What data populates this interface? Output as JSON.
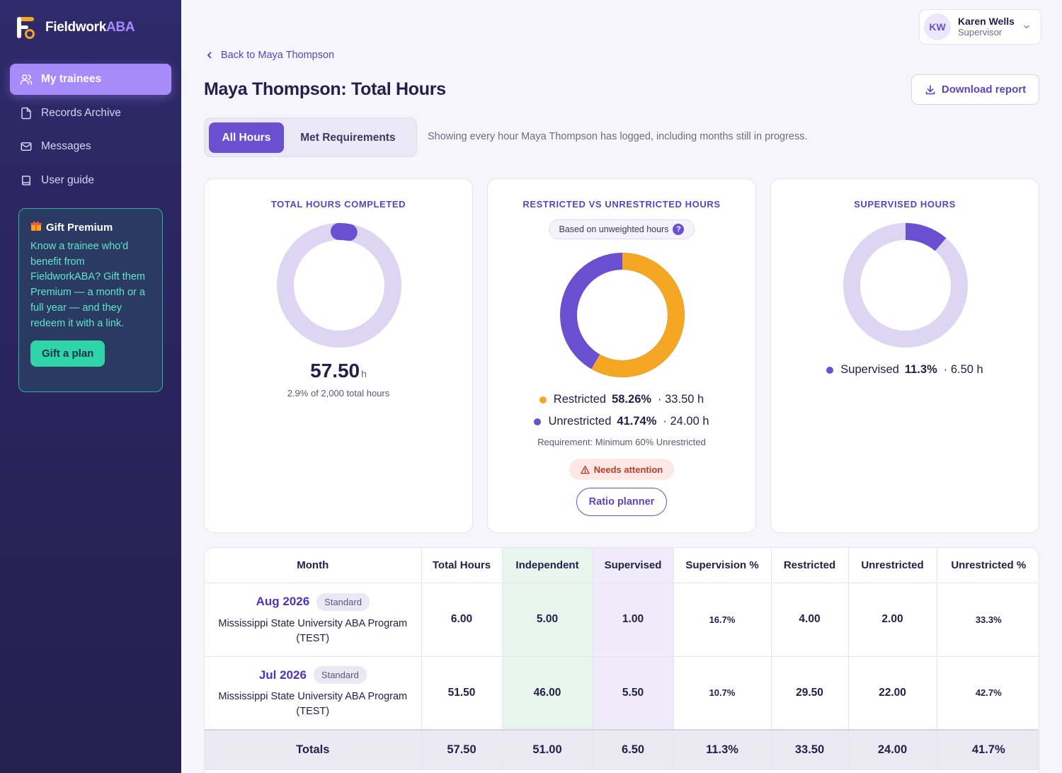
{
  "app": {
    "logo_main": "Fieldwork",
    "logo_accent": "ABA"
  },
  "sidebar": {
    "items": [
      {
        "label": "My trainees",
        "icon": "users-icon",
        "active": true
      },
      {
        "label": "Records Archive",
        "icon": "file-icon",
        "active": false
      },
      {
        "label": "Messages",
        "icon": "mail-icon",
        "active": false
      },
      {
        "label": "User guide",
        "icon": "book-icon",
        "active": false
      }
    ],
    "gift": {
      "title": "Gift Premium",
      "body": "Know a trainee who'd benefit from FieldworkABA? Gift them Premium — a month or a full year — and they redeem it with a link.",
      "button": "Gift a plan"
    }
  },
  "user": {
    "initials": "KW",
    "name": "Karen Wells",
    "role": "Supervisor"
  },
  "header": {
    "back_label": "Back to Maya Thompson",
    "title": "Maya Thompson: Total Hours",
    "download_label": "Download report"
  },
  "tabs": {
    "all": "All Hours",
    "met": "Met Requirements",
    "note": "Showing every hour Maya Thompson has logged, including months still in progress."
  },
  "cards": {
    "total": {
      "title": "TOTAL HOURS COMPLETED",
      "value": "57.50",
      "unit": "h",
      "sub": "2.9% of 2,000 total hours",
      "fraction": 0.029
    },
    "restricted": {
      "title": "RESTRICTED VS UNRESTRICTED HOURS",
      "pill": "Based on unweighted hours",
      "pill_icon": "?",
      "restricted_label": "Restricted",
      "restricted_pct": "58.26%",
      "restricted_hours": "· 33.50 h",
      "restricted_fraction": 0.5826,
      "unrestricted_label": "Unrestricted",
      "unrestricted_pct": "41.74%",
      "unrestricted_hours": "· 24.00 h",
      "requirement": "Requirement: Minimum 60% Unrestricted",
      "attention": "Needs attention",
      "ratio_button": "Ratio planner"
    },
    "supervised": {
      "title": "SUPERVISED HOURS",
      "label": "Supervised",
      "pct": "11.3%",
      "hours": "· 6.50 h",
      "fraction": 0.113
    }
  },
  "colors": {
    "accent": "#6a4fd0",
    "track": "#ddd6f3",
    "restricted": "#f5a623",
    "unrestricted": "#6a4fd0"
  },
  "table": {
    "headers": [
      "Month",
      "Total Hours",
      "Independent",
      "Supervised",
      "Supervision %",
      "Restricted",
      "Unrestricted",
      "Unrestricted %"
    ],
    "rows": [
      {
        "month": "Aug 2026",
        "badge": "Standard",
        "program": "Mississippi State University ABA Program (TEST)",
        "total": "6.00",
        "independent": "5.00",
        "supervised": "1.00",
        "supervision_pct": "16.7%",
        "restricted": "4.00",
        "unrestricted": "2.00",
        "unrestricted_pct": "33.3%"
      },
      {
        "month": "Jul 2026",
        "badge": "Standard",
        "program": "Mississippi State University ABA Program (TEST)",
        "total": "51.50",
        "independent": "46.00",
        "supervised": "5.50",
        "supervision_pct": "10.7%",
        "restricted": "29.50",
        "unrestricted": "22.00",
        "unrestricted_pct": "42.7%"
      }
    ],
    "totals": {
      "label": "Totals",
      "total": "57.50",
      "independent": "51.00",
      "supervised": "6.50",
      "supervision_pct": "11.3%",
      "restricted": "33.50",
      "unrestricted": "24.00",
      "unrestricted_pct": "41.7%"
    }
  }
}
